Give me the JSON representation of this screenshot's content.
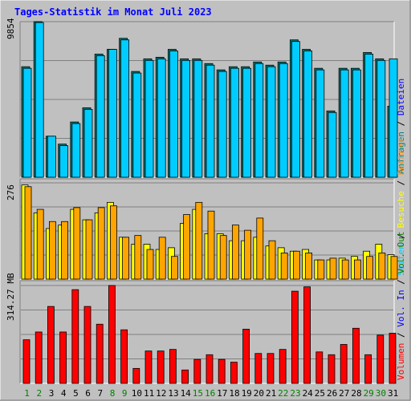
{
  "chart_data": {
    "type": "bar",
    "title": "Tages-Statistik im Monat Juli 2023",
    "categories": [
      "1",
      "2",
      "3",
      "4",
      "5",
      "6",
      "7",
      "8",
      "9",
      "10",
      "11",
      "12",
      "13",
      "14",
      "15",
      "16",
      "17",
      "18",
      "19",
      "20",
      "21",
      "22",
      "23",
      "24",
      "25",
      "26",
      "27",
      "28",
      "29",
      "30",
      "31"
    ],
    "weekend_days": [
      "1",
      "2",
      "8",
      "9",
      "15",
      "16",
      "22",
      "23",
      "29",
      "30"
    ],
    "colors": {
      "background": "#c0c0c0",
      "title": "#0000ff",
      "frame_dark": "#808080",
      "frame_light": "#ffffff",
      "grid": "#808080",
      "anfragen": "#008080",
      "dateien": "#00ccff",
      "seiten": "#00e0ff",
      "besuche": "#ffff00",
      "rechner": "#ff8c00",
      "vol_in": "#0000ff",
      "volumen": "#ff0000",
      "weekday_label": "#000000",
      "weekend_label": "#008000"
    },
    "panels": [
      {
        "max_label": "9854",
        "ylim": [
          0,
          9854
        ],
        "series": [
          {
            "name": "Anfragen",
            "color": "#008080",
            "values": [
              7000,
              9854,
              2600,
              2100,
              3500,
              4400,
              7800,
              8100,
              8800,
              6700,
              7500,
              7600,
              8100,
              7500,
              7500,
              7200,
              6800,
              7000,
              7000,
              7300,
              7100,
              7300,
              8700,
              8100,
              6900,
              4200,
              6900,
              6900,
              7900,
              7500,
              4500
            ]
          },
          {
            "name": "Dateien",
            "color": "#00ccff",
            "values": [
              6900,
              9800,
              2600,
              2000,
              3400,
              4300,
              7700,
              8100,
              8700,
              6600,
              7400,
              7500,
              8000,
              7400,
              7400,
              7100,
              6700,
              6900,
              6900,
              7200,
              7000,
              7200,
              8600,
              8000,
              6800,
              4100,
              6800,
              6800,
              7800,
              7400,
              7500
            ]
          }
        ],
        "legend": [
          {
            "text": "Anfragen",
            "color": "#008080"
          },
          {
            "text": "Dateien",
            "color": "#0000ff"
          }
        ]
      },
      {
        "max_label": "276",
        "ylim": [
          0,
          276
        ],
        "series": [
          {
            "name": "Seiten",
            "color": "#ffff00",
            "values": [
              270,
              190,
              145,
              155,
              200,
              170,
              190,
              220,
              120,
              100,
              100,
              85,
              90,
              160,
              200,
              130,
              130,
              110,
              110,
              120,
              95,
              90,
              80,
              85,
              55,
              55,
              60,
              65,
              80,
              100,
              70
            ]
          },
          {
            "name": "Besuche",
            "color": "#ffa500",
            "values": [
              265,
              200,
              165,
              165,
              205,
              170,
              205,
              210,
              120,
              125,
              85,
              120,
              65,
              185,
              220,
              195,
              125,
              155,
              140,
              175,
              110,
              75,
              80,
              75,
              55,
              60,
              55,
              55,
              65,
              75,
              65
            ]
          }
        ],
        "legend": [
          {
            "text": "Seiten",
            "color": "#00ccff"
          },
          {
            "text": "Besuche",
            "color": "#ffff00"
          },
          {
            "text": "Rechner",
            "color": "#ff8c00"
          }
        ]
      },
      {
        "max_label": "314.27 MB",
        "ylim": [
          0,
          314.27
        ],
        "series": [
          {
            "name": "Volumen",
            "color": "#ff0000",
            "values": [
              140,
              165,
              247,
              165,
              301,
              247,
              190,
              314.27,
              172,
              48,
              104,
              104,
              109,
              43,
              77,
              92,
              77,
              68,
              174,
              96,
              96,
              109,
              296,
              310,
              101,
              92,
              125,
              177,
              92,
              155,
              161
            ]
          }
        ],
        "legend": [
          {
            "text": "Volumen",
            "color": "#ff0000"
          },
          {
            "text": "Vol. In",
            "color": "#0000ff"
          },
          {
            "text": "Vol. Out",
            "color": "#008000"
          }
        ]
      }
    ]
  }
}
